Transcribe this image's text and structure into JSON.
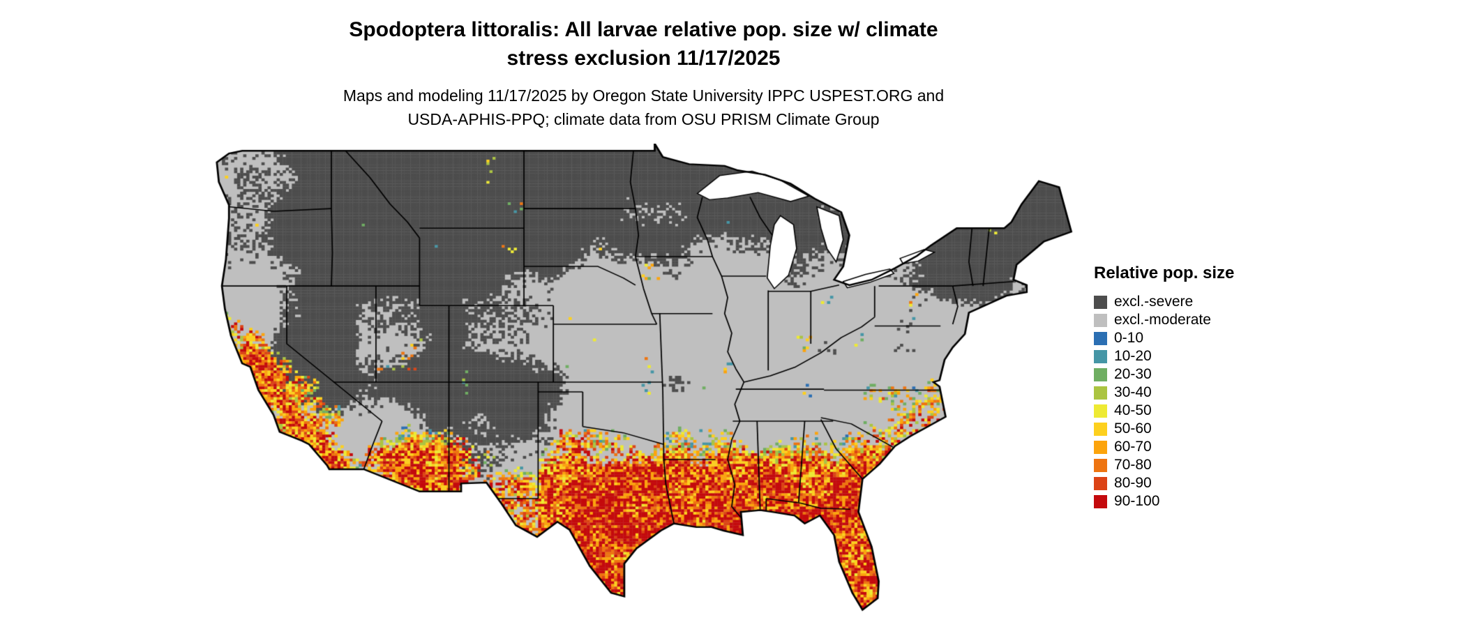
{
  "title": {
    "line1": "Spodoptera littoralis: All larvae relative pop. size w/ climate",
    "line2": "stress exclusion 11/17/2025"
  },
  "subtitle": {
    "line1": "Maps and modeling 11/17/2025 by Oregon State University IPPC USPEST.ORG and",
    "line2": "USDA-APHIS-PPQ; climate data from OSU PRISM Climate Group"
  },
  "legend": {
    "title": "Relative pop. size",
    "entries": [
      {
        "label": "excl.-severe",
        "color": "#4d4d4d"
      },
      {
        "label": "excl.-moderate",
        "color": "#bfbfbf"
      },
      {
        "label": "0-10",
        "color": "#2b6fb3"
      },
      {
        "label": "10-20",
        "color": "#4596a6"
      },
      {
        "label": "20-30",
        "color": "#6fae62"
      },
      {
        "label": "30-40",
        "color": "#abc441"
      },
      {
        "label": "40-50",
        "color": "#eeea33"
      },
      {
        "label": "50-60",
        "color": "#fdd01e"
      },
      {
        "label": "60-70",
        "color": "#fca40c"
      },
      {
        "label": "70-80",
        "color": "#ee7410"
      },
      {
        "label": "80-90",
        "color": "#dc4315"
      },
      {
        "label": "90-100",
        "color": "#c40a0d"
      }
    ]
  },
  "map": {
    "background_color": "#ffffff",
    "boundary_color": "#000000",
    "water_color": "#ffffff"
  },
  "chart_data": {
    "type": "heatmap",
    "title": "Spodoptera littoralis: All larvae relative pop. size w/ climate stress exclusion 11/17/2025",
    "region_shown": "Contiguous United States with state boundaries",
    "legend_title": "Relative pop. size",
    "classes": [
      "excl.-severe",
      "excl.-moderate",
      "0-10",
      "10-20",
      "20-30",
      "30-40",
      "40-50",
      "50-60",
      "60-70",
      "70-80",
      "80-90",
      "90-100"
    ],
    "class_colors": [
      "#4d4d4d",
      "#bfbfbf",
      "#2b6fb3",
      "#4596a6",
      "#6fae62",
      "#abc441",
      "#eeea33",
      "#fdd01e",
      "#fca40c",
      "#ee7410",
      "#dc4315",
      "#c40a0d"
    ],
    "pattern_summary": {
      "excl_severe": "Northern tier (MT, ND, SD, MN, WI, MI), Rocky Mountains (ID, WY, UT, CO), Sierra Nevada, Colorado Plateau, upstate NY and northern New England",
      "excl_moderate": "Pacific Northwest coast, Great Basin valleys, central Plains (NE, KS, OK), Midwest, mid-Atlantic, VA/KY/TN",
      "populated_values": "Coastal and central California, southern Arizona and New Mexico, most of Texas, Gulf Coast states, Florida, Georgia and the southern Atlantic coastal plain; highest (red 80-100) along the deep South and Gulf Coast with scattered blue/green (0-30) speckle at the northern fringe"
    }
  }
}
